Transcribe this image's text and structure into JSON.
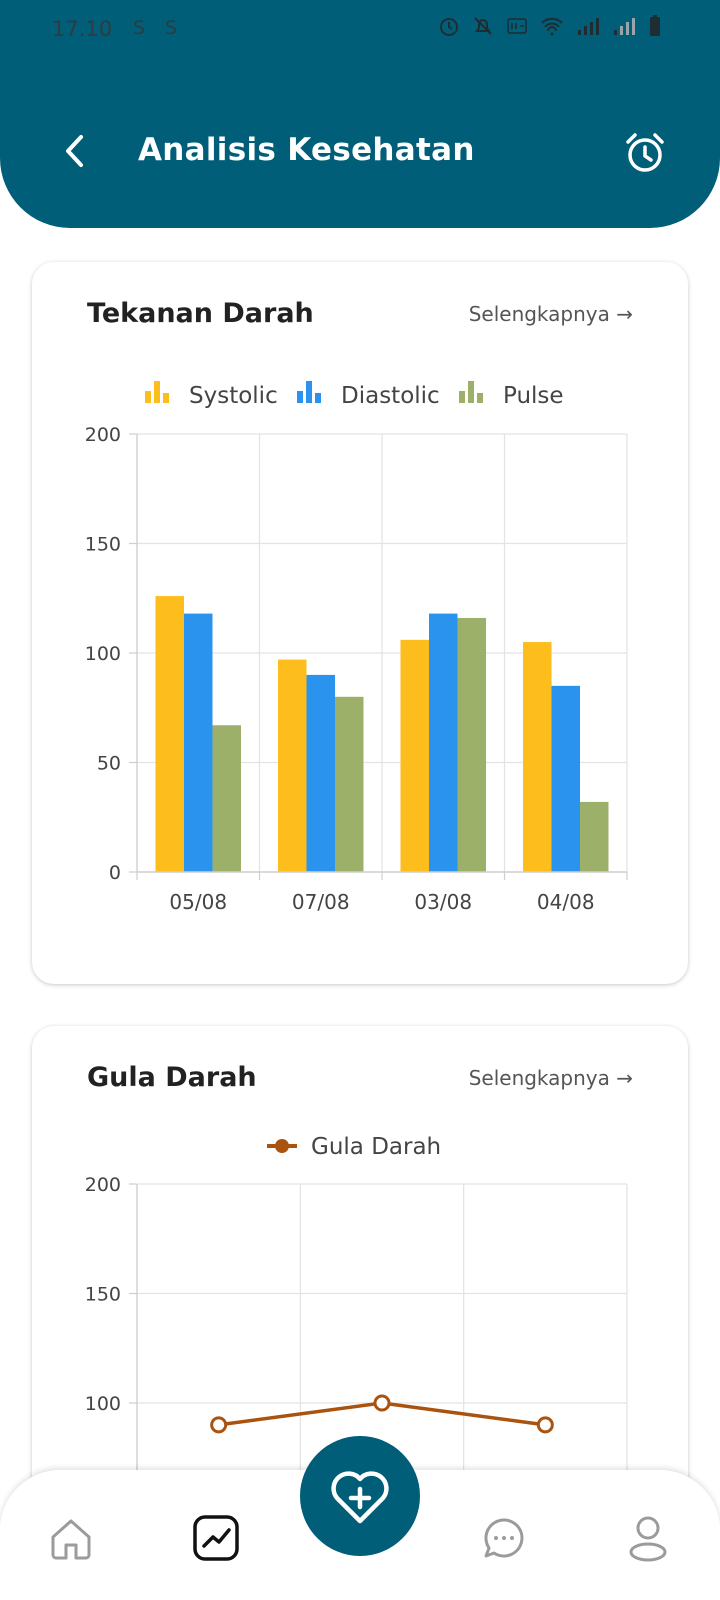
{
  "status_bar": {
    "time": "17.10",
    "badges": [
      "S",
      "S"
    ],
    "icons": [
      "alarm-icon",
      "mute-icon",
      "volte-icon",
      "wifi-icon",
      "signal-icon",
      "signal-weak-icon",
      "battery-icon"
    ]
  },
  "header": {
    "title": "Analisis Kesehatan",
    "back_icon": "chevron-left-icon",
    "action_icon": "alarm-clock-icon"
  },
  "colors": {
    "primary": "#005e78",
    "systolic": "#fdbd1d",
    "diastolic": "#2a93ed",
    "pulse": "#9db06a",
    "glucose": "#a9530f"
  },
  "cards": [
    {
      "title": "Tekanan Darah",
      "link": "Selengkapnya →"
    },
    {
      "title": "Gula Darah",
      "link": "Selengkapnya →"
    }
  ],
  "chart_data": [
    {
      "type": "bar",
      "categories": [
        "05/08",
        "07/08",
        "03/08",
        "04/08"
      ],
      "series": [
        {
          "name": "Systolic",
          "values": [
            126,
            97,
            106,
            105
          ],
          "color": "#fdbd1d"
        },
        {
          "name": "Diastolic",
          "values": [
            118,
            90,
            118,
            85
          ],
          "color": "#2a93ed"
        },
        {
          "name": "Pulse",
          "values": [
            67,
            80,
            116,
            32
          ],
          "color": "#9db06a"
        }
      ],
      "ylim": [
        0,
        200
      ],
      "yticks": [
        "0",
        "50",
        "100",
        "150",
        "200"
      ],
      "grid": true,
      "legend": "top"
    },
    {
      "type": "line",
      "categories": [
        "",
        "",
        ""
      ],
      "series": [
        {
          "name": "Gula Darah",
          "values": [
            90,
            100,
            90
          ],
          "color": "#a9530f"
        }
      ],
      "ylim": [
        0,
        200
      ],
      "yticks": [
        "100",
        "150",
        "200"
      ],
      "grid": true,
      "legend": "top"
    }
  ],
  "bottom_nav": {
    "items": [
      "home-icon",
      "analytics-icon",
      "chat-icon",
      "profile-icon"
    ],
    "fab_icon": "heart-plus-icon",
    "active": "analytics-icon"
  }
}
